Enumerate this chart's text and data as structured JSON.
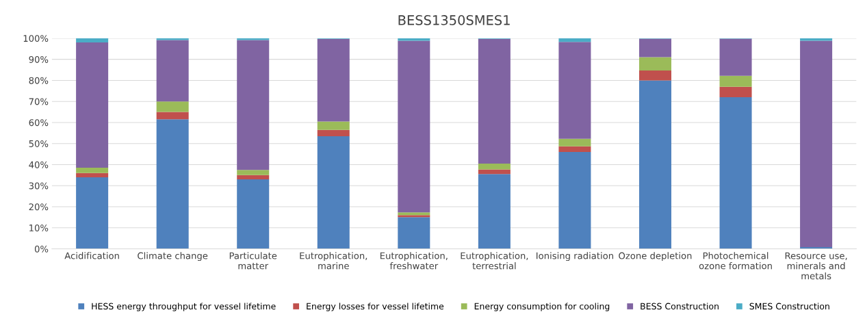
{
  "chart_data": {
    "type": "bar",
    "title": "BESS1350SMES1",
    "stacked": true,
    "categories": [
      "Acidification",
      "Climate change",
      "Particulate\nmatter",
      "Eutrophication,\nmarine",
      "Eutrophication,\nfreshwater",
      "Eutrophication,\nterrestrial",
      "Ionising radiation",
      "Ozone depletion",
      "Photochemical\nozone formation",
      "Resource use,\nminerals and\nmetals"
    ],
    "series": [
      {
        "name": "HESS energy throughput for vessel lifetime",
        "color": "#4f81bd",
        "values": [
          34,
          61.5,
          33,
          53.5,
          15,
          35.5,
          46,
          80,
          72,
          0.8
        ]
      },
      {
        "name": "Energy losses for vessel lifetime",
        "color": "#c0504d",
        "values": [
          2,
          3.5,
          2,
          3,
          1,
          2.2,
          2.7,
          4.7,
          5,
          0
        ]
      },
      {
        "name": "Energy consumption for cooling",
        "color": "#9bbb59",
        "values": [
          2.5,
          5,
          2.5,
          4,
          1.3,
          2.8,
          3.6,
          6.3,
          5.2,
          0
        ]
      },
      {
        "name": "BESS Construction",
        "color": "#8064a2",
        "values": [
          59.5,
          29.2,
          61.7,
          39.2,
          81.5,
          59.2,
          46,
          8.8,
          17.6,
          98
        ]
      },
      {
        "name": "SMES Construction",
        "color": "#4bacc6",
        "values": [
          2,
          0.8,
          0.8,
          0.3,
          1.2,
          0.3,
          1.7,
          0.2,
          0.2,
          1.2
        ]
      }
    ],
    "ylim": [
      0,
      100
    ],
    "yticks": [
      {
        "value": 0,
        "label": "0%"
      },
      {
        "value": 10,
        "label": "10%"
      },
      {
        "value": 20,
        "label": "20%"
      },
      {
        "value": 30,
        "label": "30%"
      },
      {
        "value": 40,
        "label": "40%"
      },
      {
        "value": 50,
        "label": "50%"
      },
      {
        "value": 60,
        "label": "60%"
      },
      {
        "value": 70,
        "label": "70%"
      },
      {
        "value": 80,
        "label": "80%"
      },
      {
        "value": 90,
        "label": "90%"
      },
      {
        "value": 100,
        "label": "100%"
      }
    ],
    "grid": "y",
    "legend": "bottom"
  }
}
